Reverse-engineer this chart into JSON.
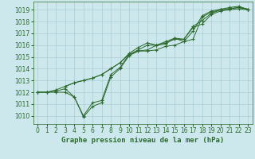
{
  "bg_color": "#cce8ec",
  "grid_color": "#aacdd4",
  "line_color": "#2d6a2d",
  "marker_color": "#2d6a2d",
  "title": "Graphe pression niveau de la mer (hPa)",
  "xlim": [
    -0.5,
    23.5
  ],
  "ylim": [
    1009.3,
    1019.7
  ],
  "yticks": [
    1010,
    1011,
    1012,
    1013,
    1014,
    1015,
    1016,
    1017,
    1018,
    1019
  ],
  "xticks": [
    0,
    1,
    2,
    3,
    4,
    5,
    6,
    7,
    8,
    9,
    10,
    11,
    12,
    13,
    14,
    15,
    16,
    17,
    18,
    19,
    20,
    21,
    22,
    23
  ],
  "series": [
    {
      "x": [
        0,
        1,
        2,
        3,
        4,
        5,
        6,
        7,
        8,
        9,
        10,
        11,
        12,
        13,
        14,
        15,
        16,
        17,
        18,
        19,
        20,
        21,
        22,
        23
      ],
      "y": [
        1012.0,
        1012.0,
        1012.0,
        1012.0,
        1011.6,
        1009.9,
        1010.8,
        1011.1,
        1013.3,
        1014.0,
        1015.1,
        1015.5,
        1015.5,
        1015.6,
        1015.9,
        1016.0,
        1016.3,
        1016.5,
        1018.4,
        1018.8,
        1019.0,
        1019.1,
        1019.2,
        1019.05
      ]
    },
    {
      "x": [
        0,
        1,
        2,
        3,
        4,
        5,
        6,
        7,
        8,
        9,
        10,
        11,
        12,
        13,
        14,
        15,
        16,
        17,
        18,
        19,
        20,
        21,
        22,
        23
      ],
      "y": [
        1012.0,
        1012.0,
        1012.2,
        1012.5,
        1012.8,
        1013.0,
        1013.2,
        1013.5,
        1014.0,
        1014.5,
        1015.2,
        1015.6,
        1016.0,
        1016.0,
        1016.2,
        1016.5,
        1016.5,
        1017.5,
        1017.8,
        1018.6,
        1018.9,
        1019.0,
        1019.1,
        1019.0
      ]
    },
    {
      "x": [
        3,
        4,
        5,
        6,
        7,
        8,
        9,
        10,
        11,
        12,
        13,
        14,
        15,
        16,
        17,
        18,
        19,
        20,
        21,
        22,
        23
      ],
      "y": [
        1012.5,
        1012.8,
        1013.0,
        1013.2,
        1013.5,
        1014.0,
        1014.5,
        1015.3,
        1015.8,
        1016.2,
        1016.0,
        1016.3,
        1016.6,
        1016.5,
        1017.6,
        1018.1,
        1018.7,
        1019.0,
        1019.1,
        1019.2,
        1019.05
      ]
    },
    {
      "x": [
        0,
        1,
        2,
        3,
        4,
        5,
        6,
        7,
        8,
        9,
        10,
        11,
        12,
        13,
        14,
        15,
        16,
        17,
        18,
        19,
        20,
        21,
        22,
        23
      ],
      "y": [
        1012.0,
        1012.0,
        1012.1,
        1012.3,
        1011.6,
        1010.0,
        1011.1,
        1011.3,
        1013.5,
        1014.1,
        1015.2,
        1015.5,
        1015.6,
        1016.0,
        1016.1,
        1016.6,
        1016.3,
        1017.2,
        1018.5,
        1018.9,
        1019.05,
        1019.2,
        1019.3,
        1019.05
      ]
    }
  ]
}
